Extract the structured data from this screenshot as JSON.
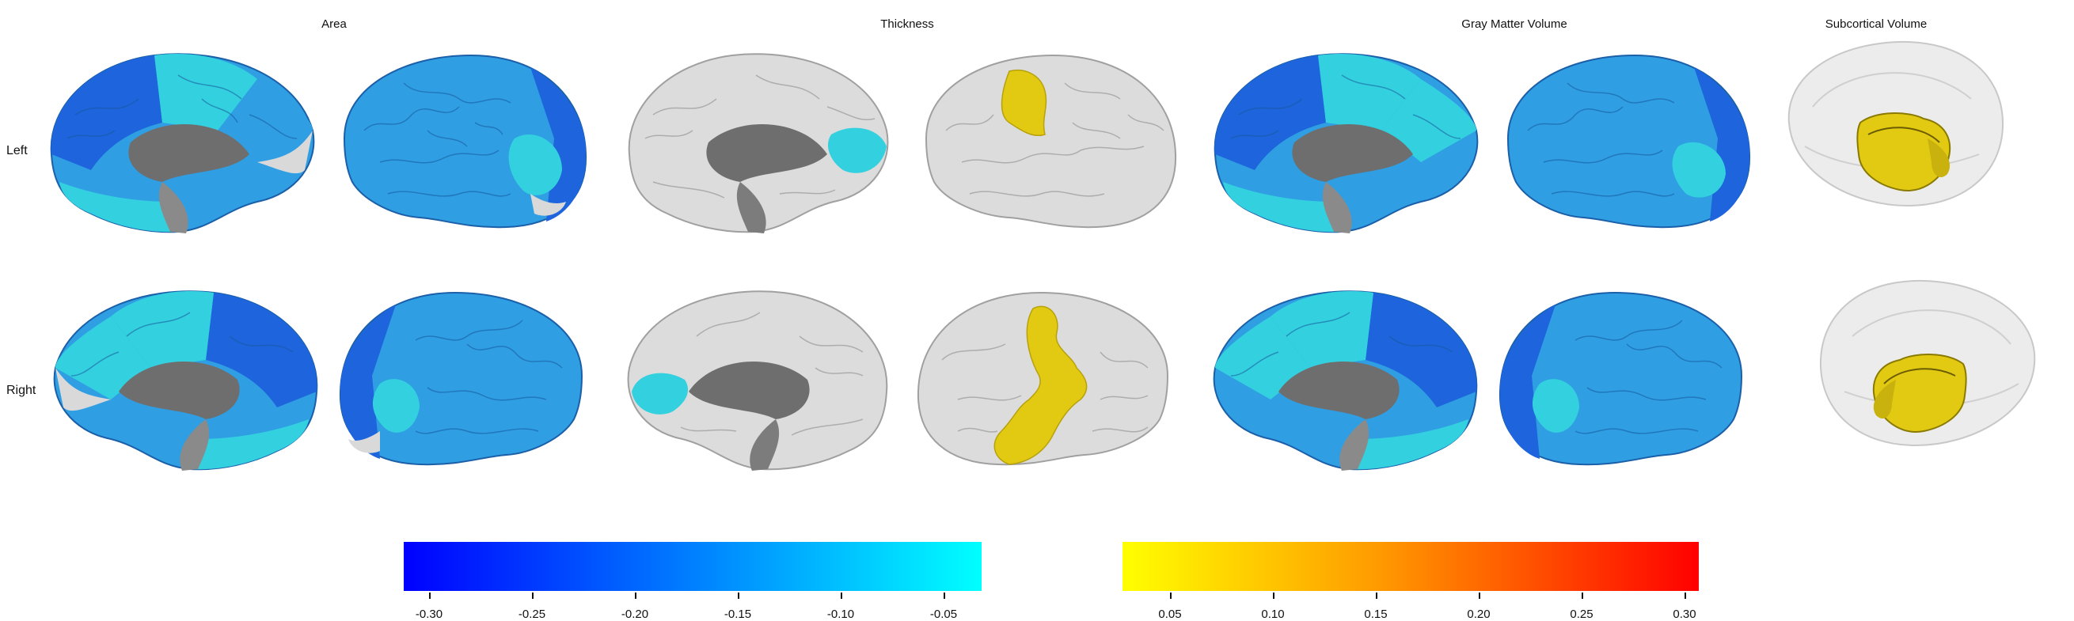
{
  "columns": {
    "area": "Area",
    "thickness": "Thickness",
    "gmv": "Gray Matter Volume",
    "subcortical": "Subcortical Volume"
  },
  "rows": {
    "left": "Left",
    "right": "Right"
  },
  "colors": {
    "dark_blue": "#1e64dc",
    "mid_blue": "#2f9ee3",
    "cyan": "#33d0df",
    "gray_cortex": "#d9d9d9",
    "medial_wall": "#6e6e6e",
    "yellow": "#e2ca12"
  },
  "colorbars": [
    {
      "name": "negative",
      "gradient": [
        "#0000ff",
        "#00ffff"
      ],
      "range": [
        -0.31,
        -0.03
      ],
      "ticks": [
        "-0.30",
        "-0.25",
        "-0.20",
        "-0.15",
        "-0.10",
        "-0.05"
      ]
    },
    {
      "name": "positive",
      "gradient": [
        "#ffff00",
        "#ff9900",
        "#ff0000"
      ],
      "range": [
        0.03,
        0.31
      ],
      "ticks": [
        "0.05",
        "0.10",
        "0.15",
        "0.20",
        "0.25",
        "0.30"
      ]
    }
  ]
}
